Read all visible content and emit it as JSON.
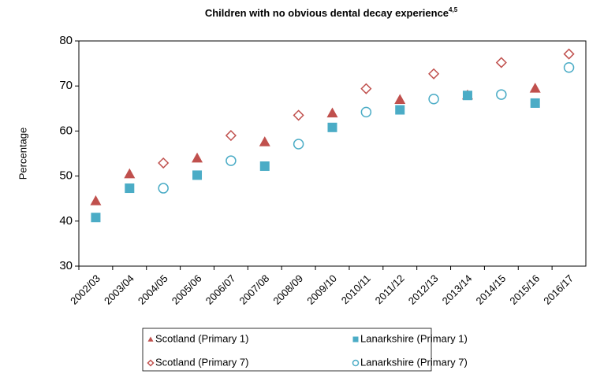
{
  "chart_data": {
    "type": "scatter",
    "title": "Children with no obvious dental decay experience",
    "title_superscript": "4,5",
    "y_label": "Percentage",
    "categories": [
      "2002/03",
      "2003/04",
      "2004/05",
      "2005/06",
      "2006/07",
      "2007/08",
      "2008/09",
      "2009/10",
      "2010/11",
      "2011/12",
      "2012/13",
      "2013/14",
      "2014/15",
      "2015/16",
      "2016/17"
    ],
    "series": [
      {
        "name": "Scotland (Primary 1)",
        "color": "#c0504d",
        "marker": "triangle",
        "filled": true,
        "values": [
          44.5,
          50.5,
          null,
          54,
          null,
          57.6,
          null,
          64,
          null,
          67,
          null,
          68,
          null,
          69.5,
          null
        ]
      },
      {
        "name": "Lanarkshire (Primary 1)",
        "color": "#4bacc6",
        "marker": "square",
        "filled": true,
        "values": [
          40.8,
          47.3,
          null,
          50.2,
          null,
          52.2,
          null,
          60.8,
          null,
          64.7,
          null,
          67.9,
          null,
          66.2,
          null
        ]
      },
      {
        "name": "Scotland (Primary 7)",
        "color": "#c0504d",
        "marker": "diamond",
        "filled": false,
        "values": [
          null,
          null,
          52.9,
          null,
          59,
          null,
          63.5,
          null,
          69.4,
          null,
          72.7,
          null,
          75.2,
          null,
          77.1
        ]
      },
      {
        "name": "Lanarkshire (Primary 7)",
        "color": "#4bacc6",
        "marker": "circle",
        "filled": false,
        "values": [
          null,
          null,
          47.3,
          null,
          53.4,
          null,
          57.1,
          null,
          64.2,
          null,
          67.1,
          null,
          68.1,
          null,
          74.1
        ]
      }
    ],
    "ylim": [
      30,
      80
    ],
    "yticks": [
      30,
      40,
      50,
      60,
      70,
      80
    ],
    "grid": false,
    "legend": "bottom"
  }
}
